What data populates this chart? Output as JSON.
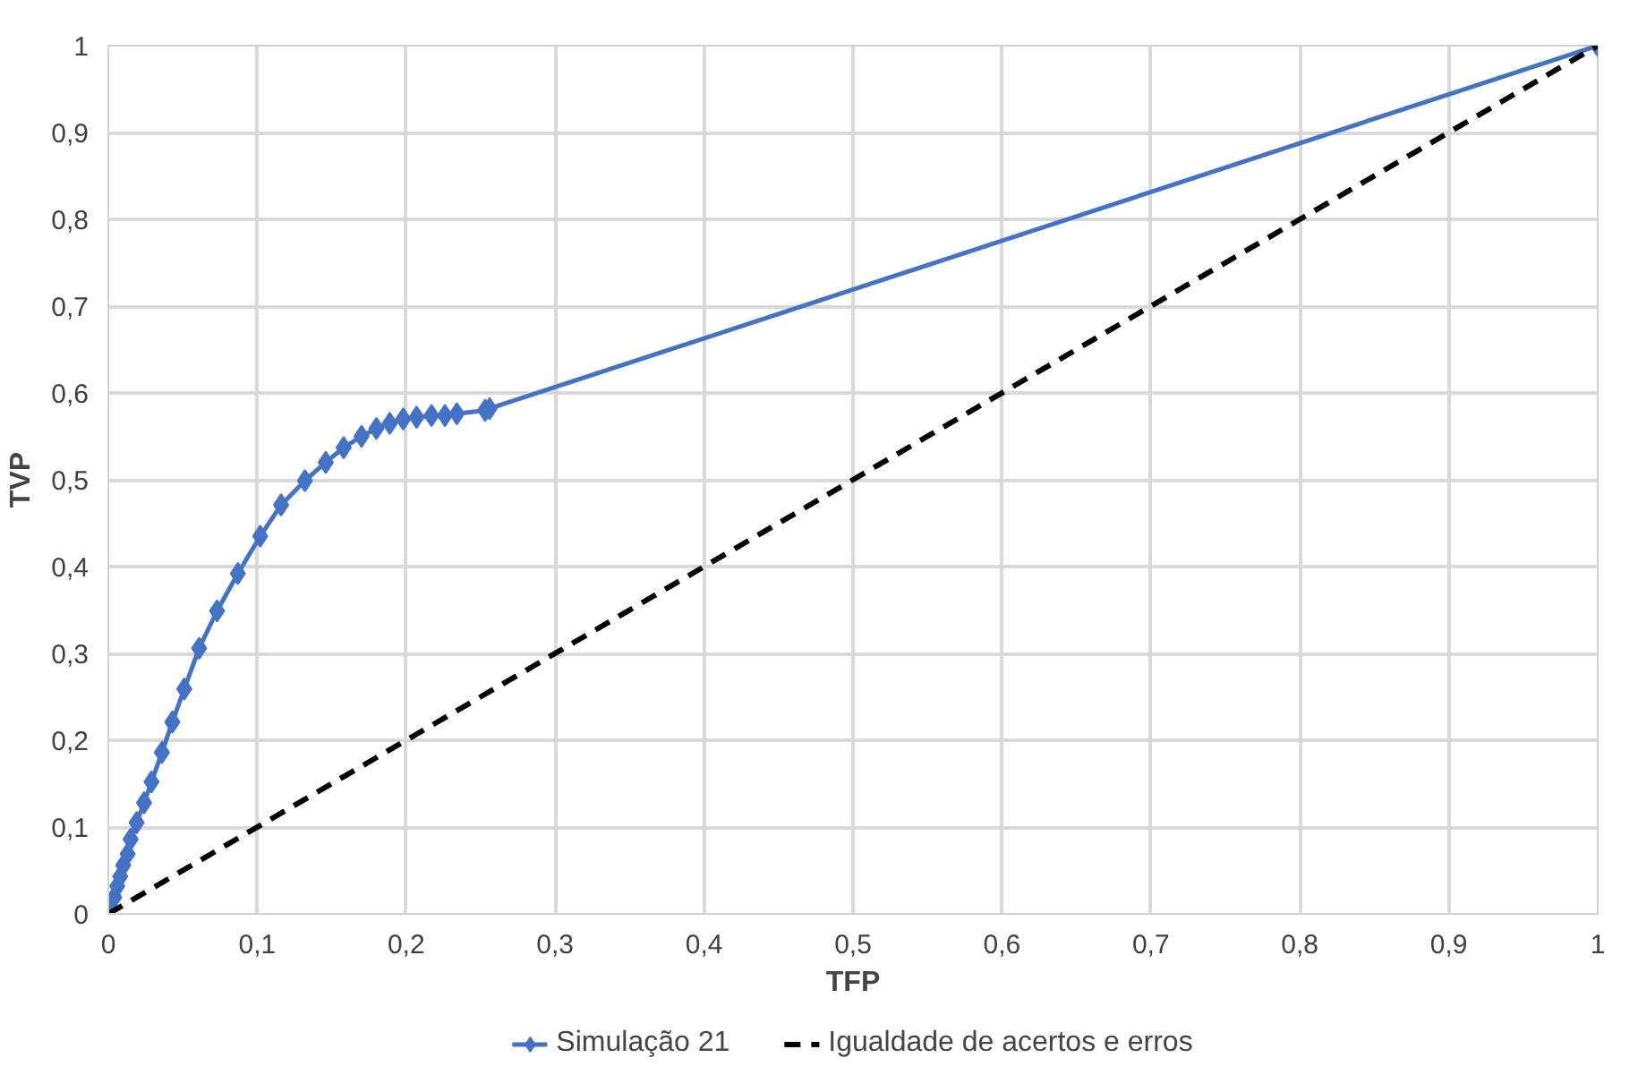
{
  "chart_data": {
    "type": "line",
    "xlabel": "TFP",
    "ylabel": "TVP",
    "xlim": [
      0,
      1
    ],
    "ylim": [
      0,
      1
    ],
    "xticks": [
      0,
      {
        "value": 0.1,
        "label": "0,1"
      },
      {
        "value": 0.2,
        "label": "0,2"
      },
      {
        "value": 0.3,
        "label": "0,3"
      },
      {
        "value": 0.4,
        "label": "0,4"
      },
      {
        "value": 0.5,
        "label": "0,5"
      },
      {
        "value": 0.6,
        "label": "0,6"
      },
      {
        "value": 0.7,
        "label": "0,7"
      },
      {
        "value": 0.8,
        "label": "0,8"
      },
      {
        "value": 0.9,
        "label": "0,9"
      },
      1
    ],
    "yticks": [
      0,
      {
        "value": 0.1,
        "label": "0,1"
      },
      {
        "value": 0.2,
        "label": "0,2"
      },
      {
        "value": 0.3,
        "label": "0,3"
      },
      {
        "value": 0.4,
        "label": "0,4"
      },
      {
        "value": 0.5,
        "label": "0,5"
      },
      {
        "value": 0.6,
        "label": "0,6"
      },
      {
        "value": 0.7,
        "label": "0,7"
      },
      {
        "value": 0.8,
        "label": "0,8"
      },
      {
        "value": 0.9,
        "label": "0,9"
      },
      1
    ],
    "grid": true,
    "legend": "bottom",
    "series": [
      {
        "name": "Simulação 21",
        "color": "#4472c4",
        "marker": "diamond",
        "line_style": "solid",
        "x": [
          0,
          0.001,
          0.004,
          0.006,
          0.008,
          0.01,
          0.013,
          0.015,
          0.019,
          0.024,
          0.029,
          0.036,
          0.043,
          0.051,
          0.061,
          0.073,
          0.087,
          0.102,
          0.116,
          0.132,
          0.146,
          0.158,
          0.17,
          0.18,
          0.189,
          0.198,
          0.207,
          0.217,
          0.226,
          0.234,
          0.253,
          0.256,
          1
        ],
        "values": [
          0,
          0.006,
          0.019,
          0.032,
          0.043,
          0.056,
          0.069,
          0.086,
          0.105,
          0.128,
          0.152,
          0.186,
          0.221,
          0.259,
          0.306,
          0.349,
          0.392,
          0.435,
          0.471,
          0.499,
          0.52,
          0.537,
          0.55,
          0.559,
          0.565,
          0.57,
          0.572,
          0.574,
          0.574,
          0.576,
          0.58,
          0.582,
          1
        ]
      },
      {
        "name": "Igualdade de acertos e erros",
        "color": "#000000",
        "marker": "none",
        "line_style": "dashed",
        "x": [
          0,
          1
        ],
        "values": [
          0,
          1
        ]
      }
    ]
  }
}
